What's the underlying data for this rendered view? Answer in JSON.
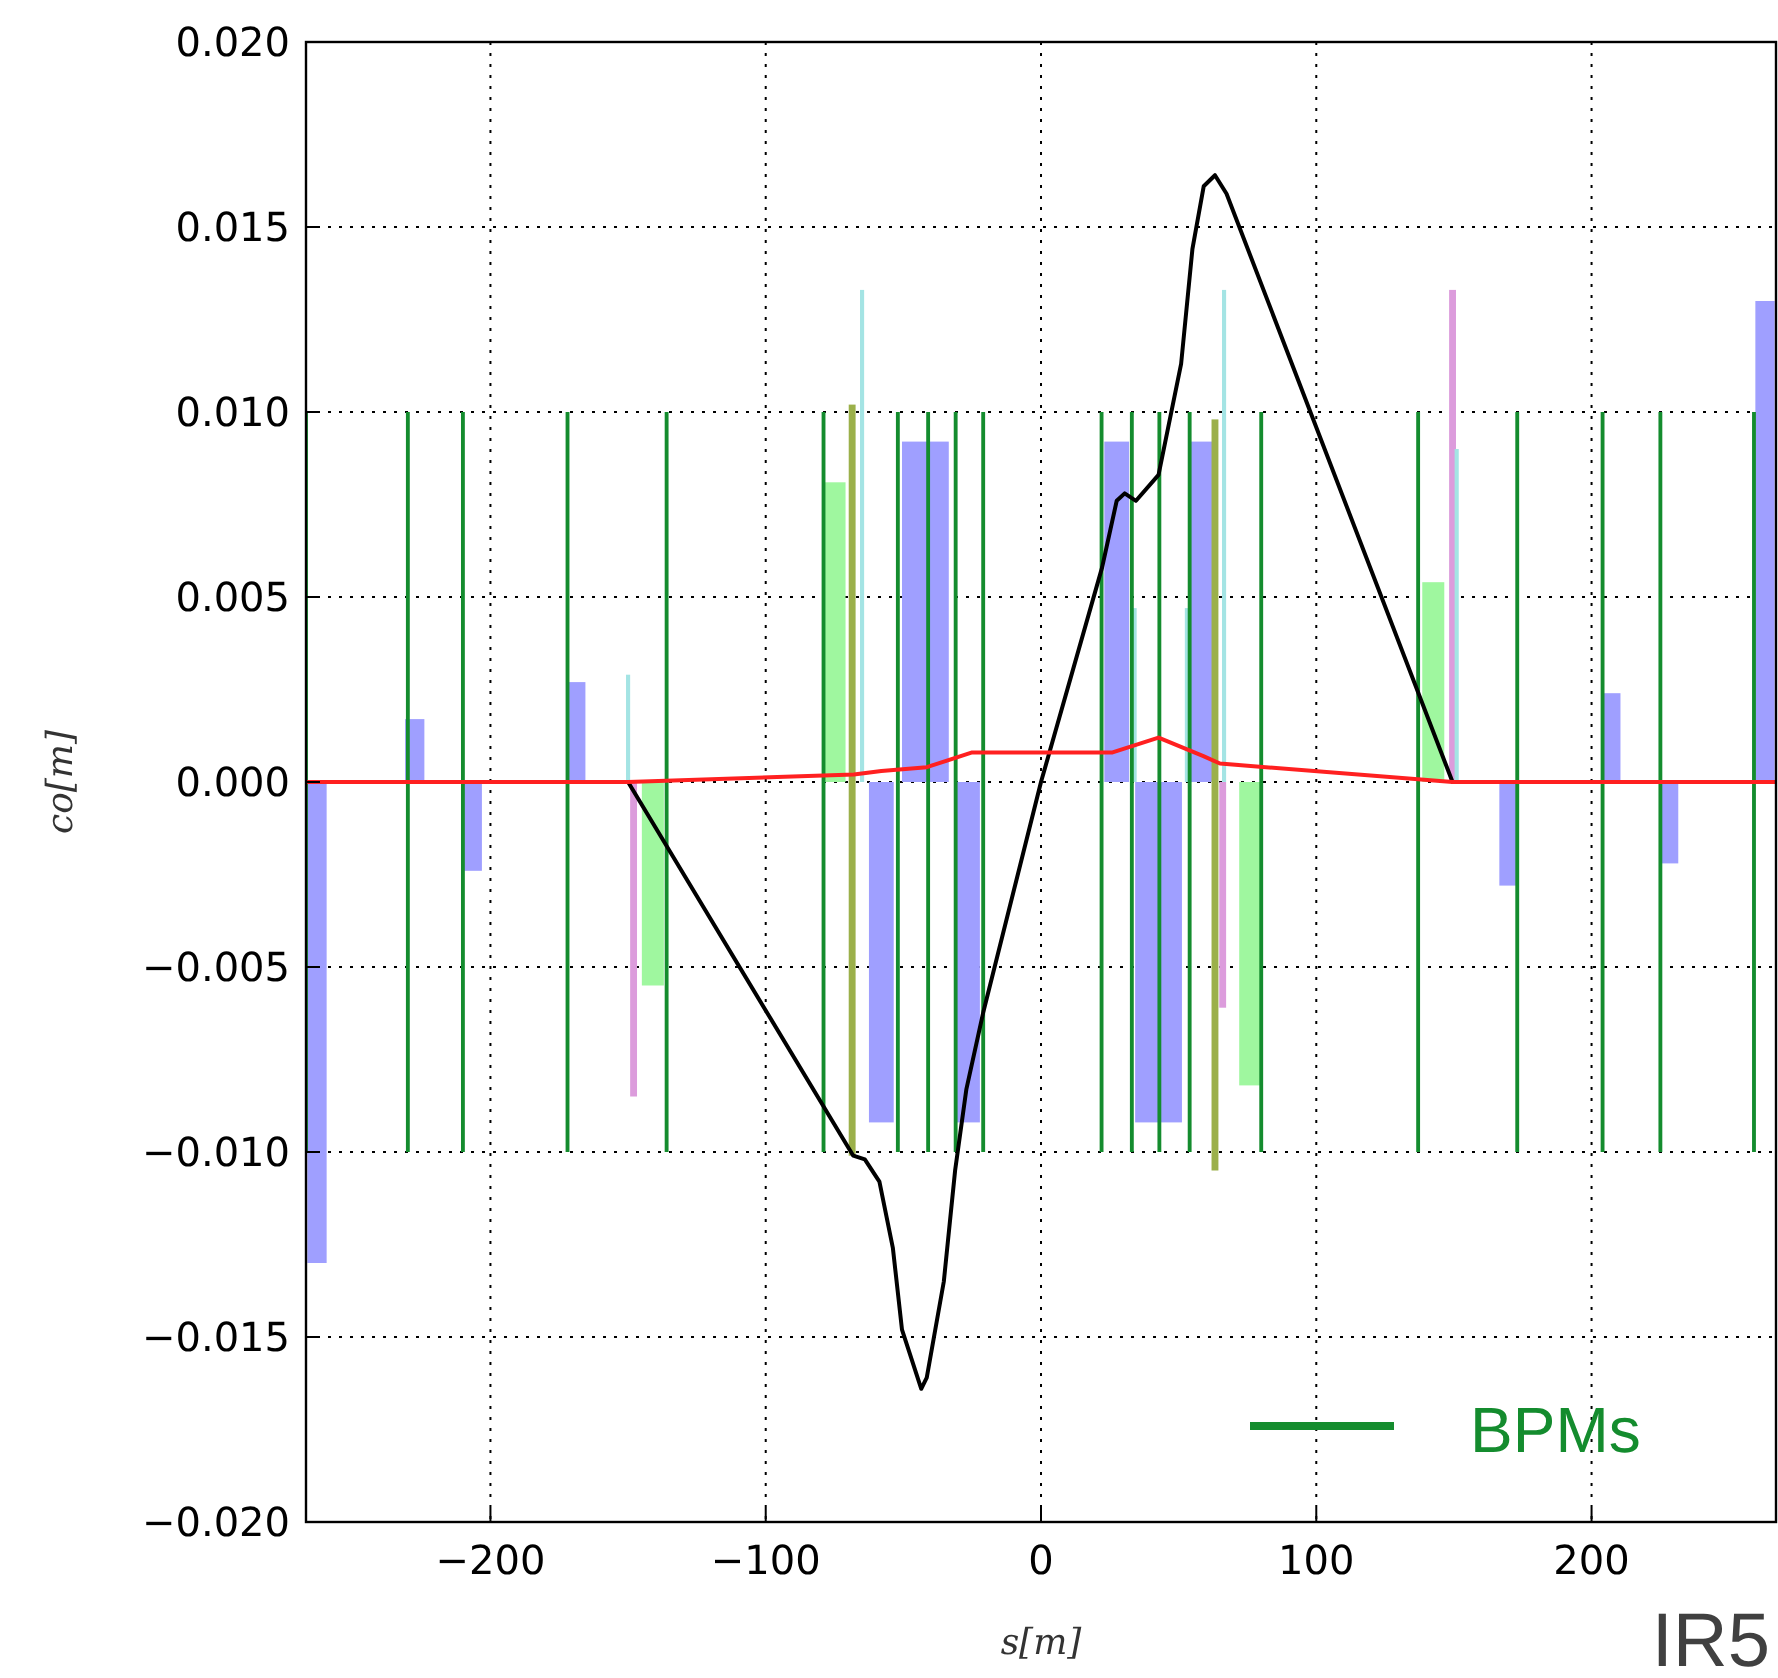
{
  "chart_data": {
    "type": "bar",
    "xlabel": "s[m]",
    "ylabel": "co[m]",
    "annotations": [
      "IR5"
    ],
    "xlim": [
      -267,
      267
    ],
    "ylim": [
      -0.02,
      0.02
    ],
    "xticks": [
      {
        "value": -200,
        "label": "−200"
      },
      {
        "value": -100,
        "label": "−100"
      },
      0,
      100,
      200
    ],
    "yticks": [
      {
        "value": -0.02,
        "label": "−0.020"
      },
      {
        "value": -0.015,
        "label": "−0.015"
      },
      {
        "value": -0.01,
        "label": "−0.010"
      },
      {
        "value": -0.005,
        "label": "−0.005"
      },
      {
        "value": 0,
        "label": "0.000"
      },
      {
        "value": 0.005,
        "label": "0.005"
      },
      {
        "value": 0.01,
        "label": "0.010"
      },
      {
        "value": 0.015,
        "label": "0.015"
      },
      {
        "value": 0.02,
        "label": "0.020"
      }
    ],
    "grid": true,
    "legend": "bottom right",
    "series": [
      {
        "color": "#9f9fff",
        "x": [
          -263,
          -227.5,
          -206.6,
          -169,
          170,
          207,
          228,
          263
        ],
        "values": [
          -0.013,
          0.0017,
          -0.0024,
          0.0027,
          -0.0028,
          0.0024,
          -0.0022,
          0.013
        ]
      },
      {
        "color": "#9f9fff",
        "x": [
          -58,
          -26.7,
          27.5,
          58
        ],
        "values": [
          -0.0092,
          -0.0092,
          0.0092,
          0.0092
        ]
      },
      {
        "color": "#9f9fff",
        "x": [
          -42,
          42.7
        ],
        "values": [
          0.0092,
          -0.0092
        ]
      },
      {
        "color": "#9ff79f",
        "x": [
          -141,
          -75,
          76,
          142.5
        ],
        "values": [
          -0.0055,
          0.0081,
          -0.0082,
          0.0054
        ]
      },
      {
        "color": "#dc9cdc",
        "x": [
          -148,
          66,
          149.5
        ],
        "values": [
          -0.0085,
          -0.0061,
          0.0133
        ]
      },
      {
        "color": "#a4e4e4",
        "x": [
          -150,
          -65,
          34,
          53,
          66.5,
          151
        ],
        "values": [
          0.0029,
          0.0133,
          0.0047,
          0.0047,
          0.0133,
          0.009
        ]
      },
      {
        "name": "BPMs",
        "color": "#148c2e",
        "x": [
          -267,
          -230,
          -210,
          -172,
          -136,
          -79,
          -52,
          -41,
          -31,
          -21,
          22,
          33,
          43,
          54,
          80,
          137,
          173,
          204,
          225,
          259
        ],
        "base": [
          -0.01,
          -0.01,
          -0.01,
          -0.01,
          -0.01,
          -0.01,
          -0.01,
          -0.01,
          -0.01,
          -0.01,
          -0.01,
          -0.01,
          -0.01,
          -0.01,
          -0.01,
          -0.01,
          -0.01,
          -0.01,
          -0.01,
          -0.01
        ],
        "values": [
          0.02,
          0.02,
          0.02,
          0.02,
          0.02,
          0.02,
          0.02,
          0.02,
          0.02,
          0.02,
          0.02,
          0.02,
          0.02,
          0.02,
          0.02,
          0.02,
          0.02,
          0.02,
          0.02,
          0.02
        ]
      },
      {
        "color": "#9bb04a",
        "x": [
          -68.6,
          63.2
        ],
        "base": [
          -0.0101,
          -0.0105
        ],
        "values": [
          0.0203,
          0.0203
        ]
      },
      {
        "type": "line",
        "color": "#000000",
        "x": [
          -267,
          -150,
          -68.2,
          -64,
          -58.7,
          -53.8,
          -50.5,
          -43.5,
          -41.5,
          -35.3,
          -31.2,
          -27.1,
          -20.9,
          0,
          22.2,
          27.5,
          30.4,
          34.5,
          42.7,
          50.9,
          55,
          59.1,
          63.2,
          67.4,
          149.5,
          267
        ],
        "values": [
          0,
          0,
          -0.0101,
          -0.0102,
          -0.0108,
          -0.0126,
          -0.0148,
          -0.0164,
          -0.0161,
          -0.0135,
          -0.0105,
          -0.0083,
          -0.0062,
          0,
          0.0058,
          0.0076,
          0.0078,
          0.0076,
          0.0083,
          0.0113,
          0.0144,
          0.0161,
          0.0164,
          0.0159,
          0,
          0
        ]
      },
      {
        "type": "line",
        "color": "#ff2020",
        "x": [
          -267,
          -150,
          -68,
          -58,
          -41.5,
          -25,
          26,
          42.7,
          59,
          65,
          149.5,
          267
        ],
        "values": [
          0,
          0,
          0.0002,
          0.0003,
          0.0004,
          0.0008,
          0.0008,
          0.0012,
          0.0007,
          0.0005,
          0,
          0
        ]
      }
    ]
  }
}
